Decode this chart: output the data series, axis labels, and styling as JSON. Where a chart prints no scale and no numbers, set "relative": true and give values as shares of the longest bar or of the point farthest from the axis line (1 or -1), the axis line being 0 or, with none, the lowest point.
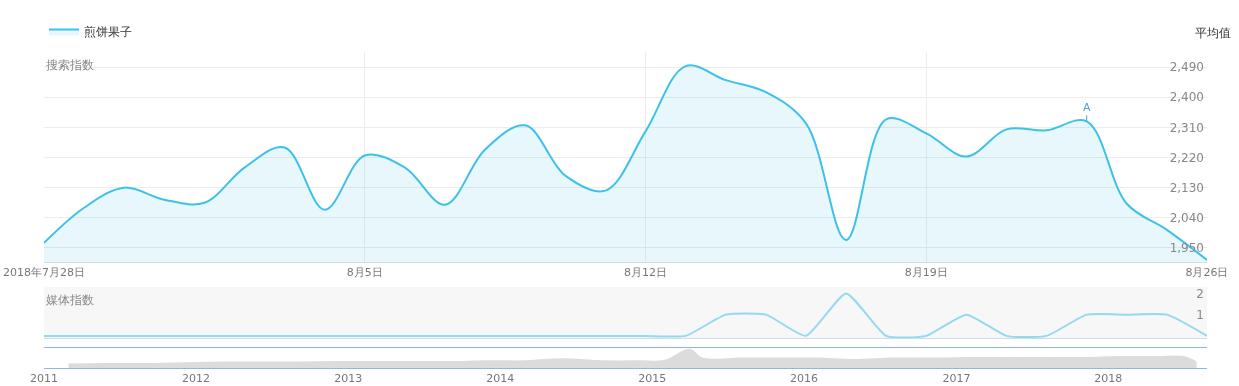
{
  "chart_data": [
    {
      "type": "area",
      "ylabel": "搜索指数",
      "legend": "top left",
      "grid": true,
      "marker": "none",
      "x": [
        "2018-07-28",
        "2018-07-29",
        "2018-07-30",
        "2018-07-31",
        "2018-08-01",
        "2018-08-02",
        "2018-08-03",
        "2018-08-04",
        "2018-08-05",
        "2018-08-06",
        "2018-08-07",
        "2018-08-08",
        "2018-08-09",
        "2018-08-10",
        "2018-08-11",
        "2018-08-12",
        "2018-08-13",
        "2018-08-14",
        "2018-08-15",
        "2018-08-16",
        "2018-08-17",
        "2018-08-18",
        "2018-08-19",
        "2018-08-20",
        "2018-08-21",
        "2018-08-22",
        "2018-08-23",
        "2018-08-24",
        "2018-08-25",
        "2018-08-26"
      ],
      "series": [
        {
          "name": "煎饼果子",
          "color": "#3ec1e8",
          "values": [
            1965,
            2070,
            2130,
            2094,
            2085,
            2190,
            2250,
            2064,
            2226,
            2190,
            2079,
            2244,
            2316,
            2166,
            2121,
            2298,
            2493,
            2451,
            2415,
            2322,
            1974,
            2334,
            2292,
            2223,
            2304,
            2301,
            2328,
            2082,
            2004,
            1914
          ]
        }
      ],
      "xlim": [
        "2018-07-28",
        "2018-08-26"
      ],
      "xticks": [
        {
          "value": "2018-07-28",
          "label": "2018年7月28日"
        },
        {
          "value": "2018-08-05",
          "label": "8月5日"
        },
        {
          "value": "2018-08-12",
          "label": "8月12日"
        },
        {
          "value": "2018-08-19",
          "label": "8月19日"
        },
        {
          "value": "2018-08-26",
          "label": "8月26日"
        }
      ],
      "ylim": [
        1908,
        2535
      ],
      "yticks": [
        {
          "value": 1950,
          "label": "1,950"
        },
        {
          "value": 2040,
          "label": "2,040"
        },
        {
          "value": 2130,
          "label": "2,130"
        },
        {
          "value": 2220,
          "label": "2,220"
        },
        {
          "value": 2310,
          "label": "2,310"
        },
        {
          "value": 2400,
          "label": "2,400"
        },
        {
          "value": 2490,
          "label": "2,490"
        }
      ],
      "annotations": [
        {
          "text": "A",
          "x": "2018-08-23",
          "y": 2328
        },
        "平均值"
      ]
    },
    {
      "type": "line",
      "ylabel": "媒体指数",
      "tick_labels": "y",
      "marker": "none",
      "x": [
        "2018-07-28",
        "2018-07-29",
        "2018-07-30",
        "2018-07-31",
        "2018-08-01",
        "2018-08-02",
        "2018-08-03",
        "2018-08-04",
        "2018-08-05",
        "2018-08-06",
        "2018-08-07",
        "2018-08-08",
        "2018-08-09",
        "2018-08-10",
        "2018-08-11",
        "2018-08-12",
        "2018-08-13",
        "2018-08-14",
        "2018-08-15",
        "2018-08-16",
        "2018-08-17",
        "2018-08-18",
        "2018-08-19",
        "2018-08-20",
        "2018-08-21",
        "2018-08-22",
        "2018-08-23",
        "2018-08-24",
        "2018-08-25",
        "2018-08-26"
      ],
      "series": [
        {
          "color": "#93d9f0",
          "values": [
            0,
            0,
            0,
            0,
            0,
            0,
            0,
            0,
            0,
            0,
            0,
            0,
            0,
            0,
            0,
            0,
            0,
            1,
            1,
            0,
            2,
            0,
            0,
            1,
            0,
            0,
            1,
            1,
            1,
            0
          ]
        }
      ],
      "xlim": [
        "2018-07-28",
        "2018-08-26"
      ],
      "ylim": [
        -0.1,
        2.3
      ],
      "yticks": [
        1,
        2
      ]
    },
    {
      "type": "area",
      "relative": true,
      "tick_labels": "x",
      "marker": "none",
      "x": [
        "2011-03",
        "2011-06",
        "2011-09",
        "2011-12",
        "2012-03",
        "2012-06",
        "2012-09",
        "2012-12",
        "2013-03",
        "2013-06",
        "2013-09",
        "2013-12",
        "2014-03",
        "2014-06",
        "2014-09",
        "2014-12",
        "2015-02",
        "2015-04",
        "2015-05",
        "2015-08",
        "2015-11",
        "2016-02",
        "2016-05",
        "2016-08",
        "2016-11",
        "2017-02",
        "2017-05",
        "2017-08",
        "2017-11",
        "2018-02",
        "2018-05",
        "2018-07",
        "2018-08"
      ],
      "series": [
        {
          "color": "#dcdcdc",
          "values": [
            0.19,
            0.22,
            0.22,
            0.26,
            0.3,
            0.3,
            0.3,
            0.33,
            0.33,
            0.33,
            0.33,
            0.37,
            0.37,
            0.48,
            0.37,
            0.37,
            0.4,
            1,
            0.52,
            0.52,
            0.52,
            0.52,
            0.44,
            0.52,
            0.52,
            0.55,
            0.55,
            0.55,
            0.55,
            0.6,
            0.6,
            0.6,
            0.3
          ]
        }
      ],
      "xlim": [
        "2011-01-01",
        "2018-08-26"
      ],
      "xticks": [
        {
          "value": "2011-01-01",
          "label": "2011"
        },
        {
          "value": "2012-01-01",
          "label": "2012"
        },
        {
          "value": "2013-01-01",
          "label": "2013"
        },
        {
          "value": "2014-01-01",
          "label": "2014"
        },
        {
          "value": "2015-01-01",
          "label": "2015"
        },
        {
          "value": "2016-01-01",
          "label": "2016"
        },
        {
          "value": "2017-01-01",
          "label": "2017"
        },
        {
          "value": "2018-01-01",
          "label": "2018"
        }
      ]
    }
  ]
}
